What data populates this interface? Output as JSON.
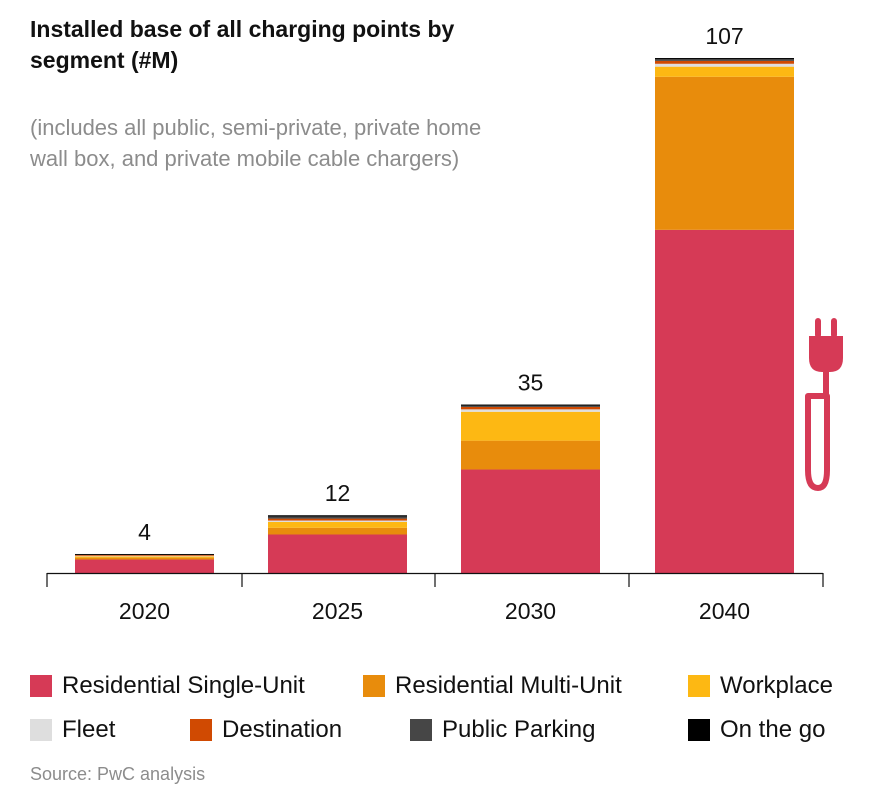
{
  "chart_data": {
    "type": "bar",
    "stacked": true,
    "title": "Installed base of all charging points by segment (#M)",
    "subtitle": "(includes all public, semi-private, private home wall box, and private mobile cable chargers)",
    "source": "Source: PwC analysis",
    "categories": [
      "2020",
      "2025",
      "2030",
      "2040"
    ],
    "totals": [
      "4",
      "12",
      "35",
      "107"
    ],
    "ylim": [
      0,
      107
    ],
    "grid": false,
    "legend_position": "bottom",
    "series": [
      {
        "name": "Residential Single-Unit",
        "color": "#d63a56",
        "values": [
          2.8,
          8.0,
          21.5,
          71.3
        ]
      },
      {
        "name": "Residential Multi-Unit",
        "color": "#e88c0c",
        "values": [
          0.4,
          1.4,
          6.0,
          31.8
        ]
      },
      {
        "name": "Workplace",
        "color": "#fdb813",
        "values": [
          0.3,
          1.2,
          6.0,
          2.1
        ]
      },
      {
        "name": "Fleet",
        "color": "#dedede",
        "values": [
          0.1,
          0.3,
          0.5,
          0.6
        ]
      },
      {
        "name": "Destination",
        "color": "#d04a02",
        "values": [
          0.15,
          0.4,
          0.5,
          0.6
        ]
      },
      {
        "name": "Public Parking",
        "color": "#464646",
        "values": [
          0.15,
          0.4,
          0.3,
          0.4
        ]
      },
      {
        "name": "On the go",
        "color": "#000000",
        "values": [
          0.05,
          0.3,
          0.2,
          0.2
        ]
      }
    ]
  }
}
